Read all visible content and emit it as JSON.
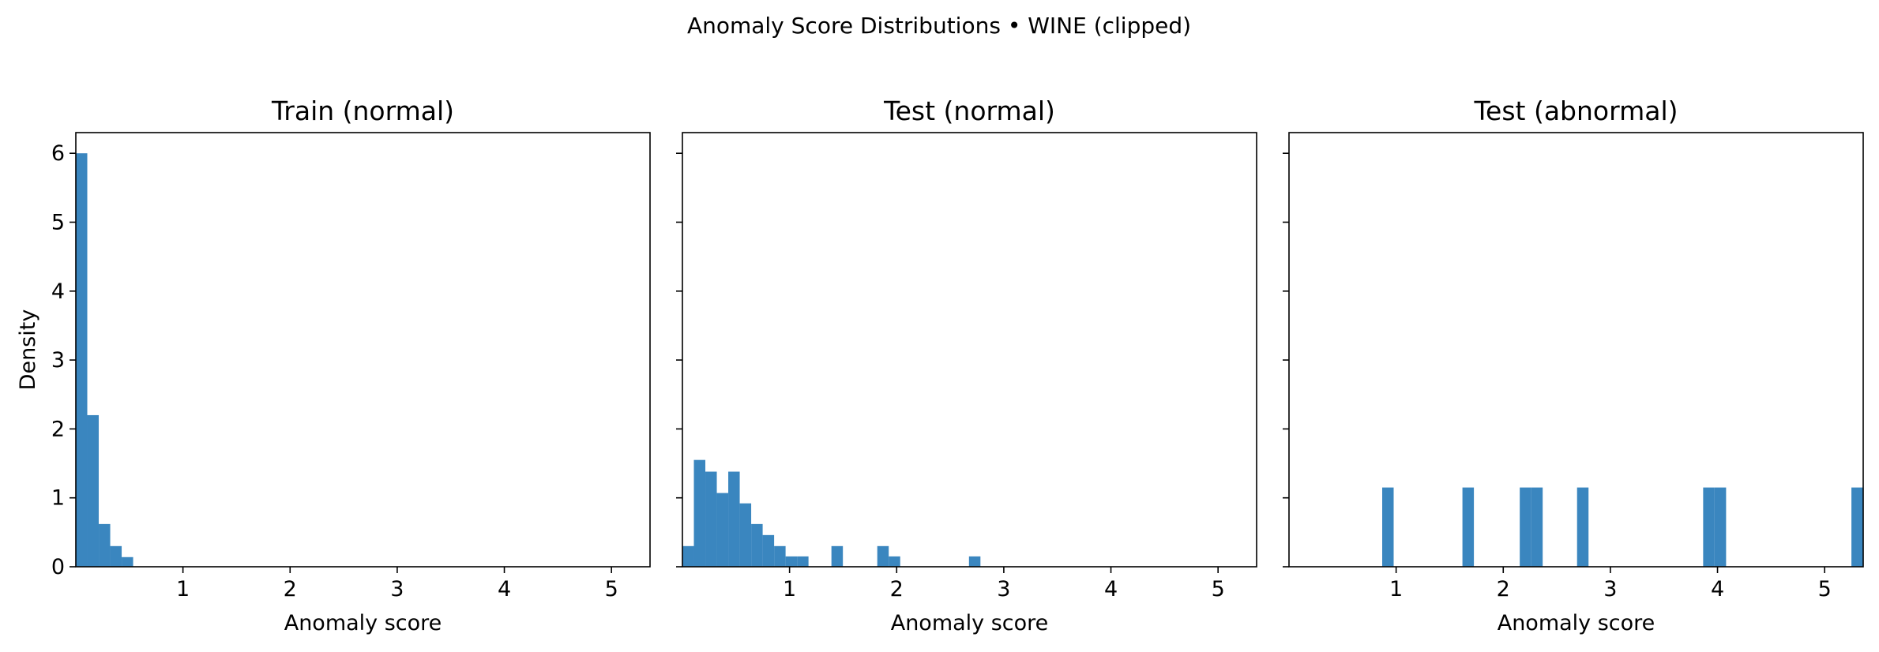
{
  "figure": {
    "title": "Anomaly Score Distributions • WINE (clipped)"
  },
  "colors": {
    "bar": "#3a86bf",
    "frame": "#000000",
    "background": "#ffffff"
  },
  "chart_data": [
    {
      "type": "bar",
      "title": "Train (normal)",
      "xlabel": "Anomaly score",
      "ylabel": "Density",
      "xlim": [
        0.0,
        5.36
      ],
      "ylim": [
        0,
        6.3
      ],
      "xticks": [
        "1",
        "2",
        "3",
        "4",
        "5"
      ],
      "yticks": [
        "0",
        "1",
        "2",
        "3",
        "4",
        "5",
        "6"
      ],
      "bin_width": 0.107,
      "bins": [
        {
          "x0": 0.0,
          "x1": 0.107,
          "density": 6.0
        },
        {
          "x0": 0.107,
          "x1": 0.214,
          "density": 2.2
        },
        {
          "x0": 0.214,
          "x1": 0.321,
          "density": 0.62
        },
        {
          "x0": 0.321,
          "x1": 0.428,
          "density": 0.3
        },
        {
          "x0": 0.428,
          "x1": 0.535,
          "density": 0.14
        }
      ],
      "grid": false
    },
    {
      "type": "bar",
      "title": "Test (normal)",
      "xlabel": "Anomaly score",
      "ylabel": "",
      "xlim": [
        0.0,
        5.36
      ],
      "ylim": [
        0,
        6.3
      ],
      "xticks": [
        "1",
        "2",
        "3",
        "4",
        "5"
      ],
      "yticks": [],
      "bin_width": 0.107,
      "bins": [
        {
          "x0": 0.0,
          "x1": 0.107,
          "density": 0.3
        },
        {
          "x0": 0.107,
          "x1": 0.214,
          "density": 1.55
        },
        {
          "x0": 0.214,
          "x1": 0.321,
          "density": 1.38
        },
        {
          "x0": 0.321,
          "x1": 0.428,
          "density": 1.07
        },
        {
          "x0": 0.428,
          "x1": 0.535,
          "density": 1.38
        },
        {
          "x0": 0.535,
          "x1": 0.642,
          "density": 0.92
        },
        {
          "x0": 0.642,
          "x1": 0.749,
          "density": 0.62
        },
        {
          "x0": 0.749,
          "x1": 0.856,
          "density": 0.46
        },
        {
          "x0": 0.856,
          "x1": 0.963,
          "density": 0.3
        },
        {
          "x0": 0.963,
          "x1": 1.07,
          "density": 0.15
        },
        {
          "x0": 1.07,
          "x1": 1.177,
          "density": 0.15
        },
        {
          "x0": 1.391,
          "x1": 1.498,
          "density": 0.3
        },
        {
          "x0": 1.819,
          "x1": 1.926,
          "density": 0.3
        },
        {
          "x0": 1.926,
          "x1": 2.033,
          "density": 0.15
        },
        {
          "x0": 2.675,
          "x1": 2.782,
          "density": 0.15
        }
      ],
      "grid": false
    },
    {
      "type": "bar",
      "title": "Test (abnormal)",
      "xlabel": "Anomaly score",
      "ylabel": "",
      "xlim": [
        0.0,
        5.36
      ],
      "ylim": [
        0,
        6.3
      ],
      "xticks": [
        "1",
        "2",
        "3",
        "4",
        "5"
      ],
      "yticks": [],
      "bin_width": 0.107,
      "bins": [
        {
          "x0": 0.87,
          "x1": 0.977,
          "density": 1.15
        },
        {
          "x0": 1.619,
          "x1": 1.726,
          "density": 1.15
        },
        {
          "x0": 2.154,
          "x1": 2.261,
          "density": 1.15
        },
        {
          "x0": 2.261,
          "x1": 2.368,
          "density": 1.15
        },
        {
          "x0": 2.689,
          "x1": 2.796,
          "density": 1.15
        },
        {
          "x0": 3.866,
          "x1": 3.973,
          "density": 1.15
        },
        {
          "x0": 3.973,
          "x1": 4.08,
          "density": 1.15
        },
        {
          "x0": 5.25,
          "x1": 5.357,
          "density": 1.15
        }
      ],
      "grid": false
    }
  ]
}
